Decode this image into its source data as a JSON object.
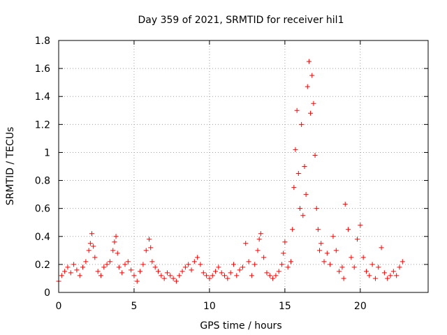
{
  "chart_data": {
    "type": "scatter",
    "title": "Day 359 of 2021, SRMTID for receiver hil1",
    "xlabel": "GPS time / hours",
    "ylabel": "SRMTID / TECUs",
    "xlim": [
      0,
      24.5
    ],
    "ylim": [
      0,
      1.8
    ],
    "x_ticks": [
      0,
      5,
      10,
      15,
      20
    ],
    "x_tick_labels": [
      "0",
      "5",
      "10",
      "15",
      "20"
    ],
    "y_ticks": [
      0,
      0.2,
      0.4,
      0.6,
      0.8,
      1.0,
      1.2,
      1.4,
      1.6,
      1.8
    ],
    "y_tick_labels": [
      "0",
      "0.2",
      "0.4",
      "0.6",
      "0.8",
      "1",
      "1.2",
      "1.4",
      "1.6",
      "1.8"
    ],
    "grid": true,
    "marker": "plus",
    "color": "#ff0000",
    "series": [
      {
        "name": "SRMTID",
        "x": [
          0.0,
          0.2,
          0.4,
          0.6,
          0.8,
          1.0,
          1.2,
          1.4,
          1.6,
          1.8,
          2.0,
          2.1,
          2.2,
          2.3,
          2.4,
          2.6,
          2.8,
          3.0,
          3.2,
          3.4,
          3.6,
          3.7,
          3.8,
          3.9,
          4.0,
          4.2,
          4.4,
          4.6,
          4.8,
          5.0,
          5.2,
          5.4,
          5.6,
          5.8,
          6.0,
          6.1,
          6.2,
          6.4,
          6.6,
          6.8,
          7.0,
          7.2,
          7.4,
          7.6,
          7.8,
          8.0,
          8.2,
          8.4,
          8.6,
          8.8,
          9.0,
          9.2,
          9.4,
          9.6,
          9.8,
          10.0,
          10.2,
          10.4,
          10.6,
          10.8,
          11.0,
          11.2,
          11.4,
          11.6,
          11.8,
          12.0,
          12.2,
          12.4,
          12.6,
          12.8,
          13.0,
          13.2,
          13.3,
          13.4,
          13.6,
          13.8,
          14.0,
          14.2,
          14.4,
          14.6,
          14.8,
          14.9,
          15.0,
          15.2,
          15.4,
          15.5,
          15.6,
          15.7,
          15.8,
          15.9,
          16.0,
          16.1,
          16.2,
          16.3,
          16.4,
          16.5,
          16.6,
          16.7,
          16.8,
          16.9,
          17.0,
          17.1,
          17.2,
          17.3,
          17.4,
          17.6,
          17.8,
          18.0,
          18.2,
          18.4,
          18.6,
          18.8,
          18.9,
          19.0,
          19.2,
          19.4,
          19.6,
          19.8,
          20.0,
          20.2,
          20.4,
          20.6,
          20.8,
          21.0,
          21.2,
          21.4,
          21.6,
          21.8,
          22.0,
          22.2,
          22.4,
          22.6,
          22.8
        ],
        "y": [
          0.08,
          0.12,
          0.15,
          0.18,
          0.14,
          0.2,
          0.16,
          0.12,
          0.18,
          0.22,
          0.3,
          0.35,
          0.42,
          0.33,
          0.25,
          0.15,
          0.12,
          0.18,
          0.2,
          0.22,
          0.3,
          0.36,
          0.4,
          0.28,
          0.18,
          0.14,
          0.2,
          0.22,
          0.16,
          0.12,
          0.08,
          0.15,
          0.2,
          0.3,
          0.38,
          0.32,
          0.22,
          0.18,
          0.15,
          0.12,
          0.1,
          0.14,
          0.12,
          0.1,
          0.08,
          0.12,
          0.15,
          0.18,
          0.2,
          0.16,
          0.22,
          0.25,
          0.2,
          0.14,
          0.12,
          0.1,
          0.12,
          0.15,
          0.18,
          0.14,
          0.12,
          0.1,
          0.14,
          0.2,
          0.12,
          0.16,
          0.18,
          0.35,
          0.22,
          0.12,
          0.2,
          0.3,
          0.38,
          0.42,
          0.25,
          0.14,
          0.12,
          0.1,
          0.12,
          0.15,
          0.2,
          0.28,
          0.36,
          0.18,
          0.22,
          0.45,
          0.75,
          1.02,
          1.3,
          0.85,
          0.6,
          1.2,
          0.55,
          0.9,
          0.7,
          1.47,
          1.65,
          1.28,
          1.55,
          1.35,
          0.98,
          0.6,
          0.45,
          0.3,
          0.35,
          0.22,
          0.28,
          0.2,
          0.4,
          0.3,
          0.15,
          0.18,
          0.1,
          0.63,
          0.45,
          0.25,
          0.18,
          0.38,
          0.48,
          0.25,
          0.15,
          0.12,
          0.2,
          0.1,
          0.18,
          0.32,
          0.14,
          0.1,
          0.12,
          0.15,
          0.12,
          0.18,
          0.22
        ]
      }
    ]
  }
}
